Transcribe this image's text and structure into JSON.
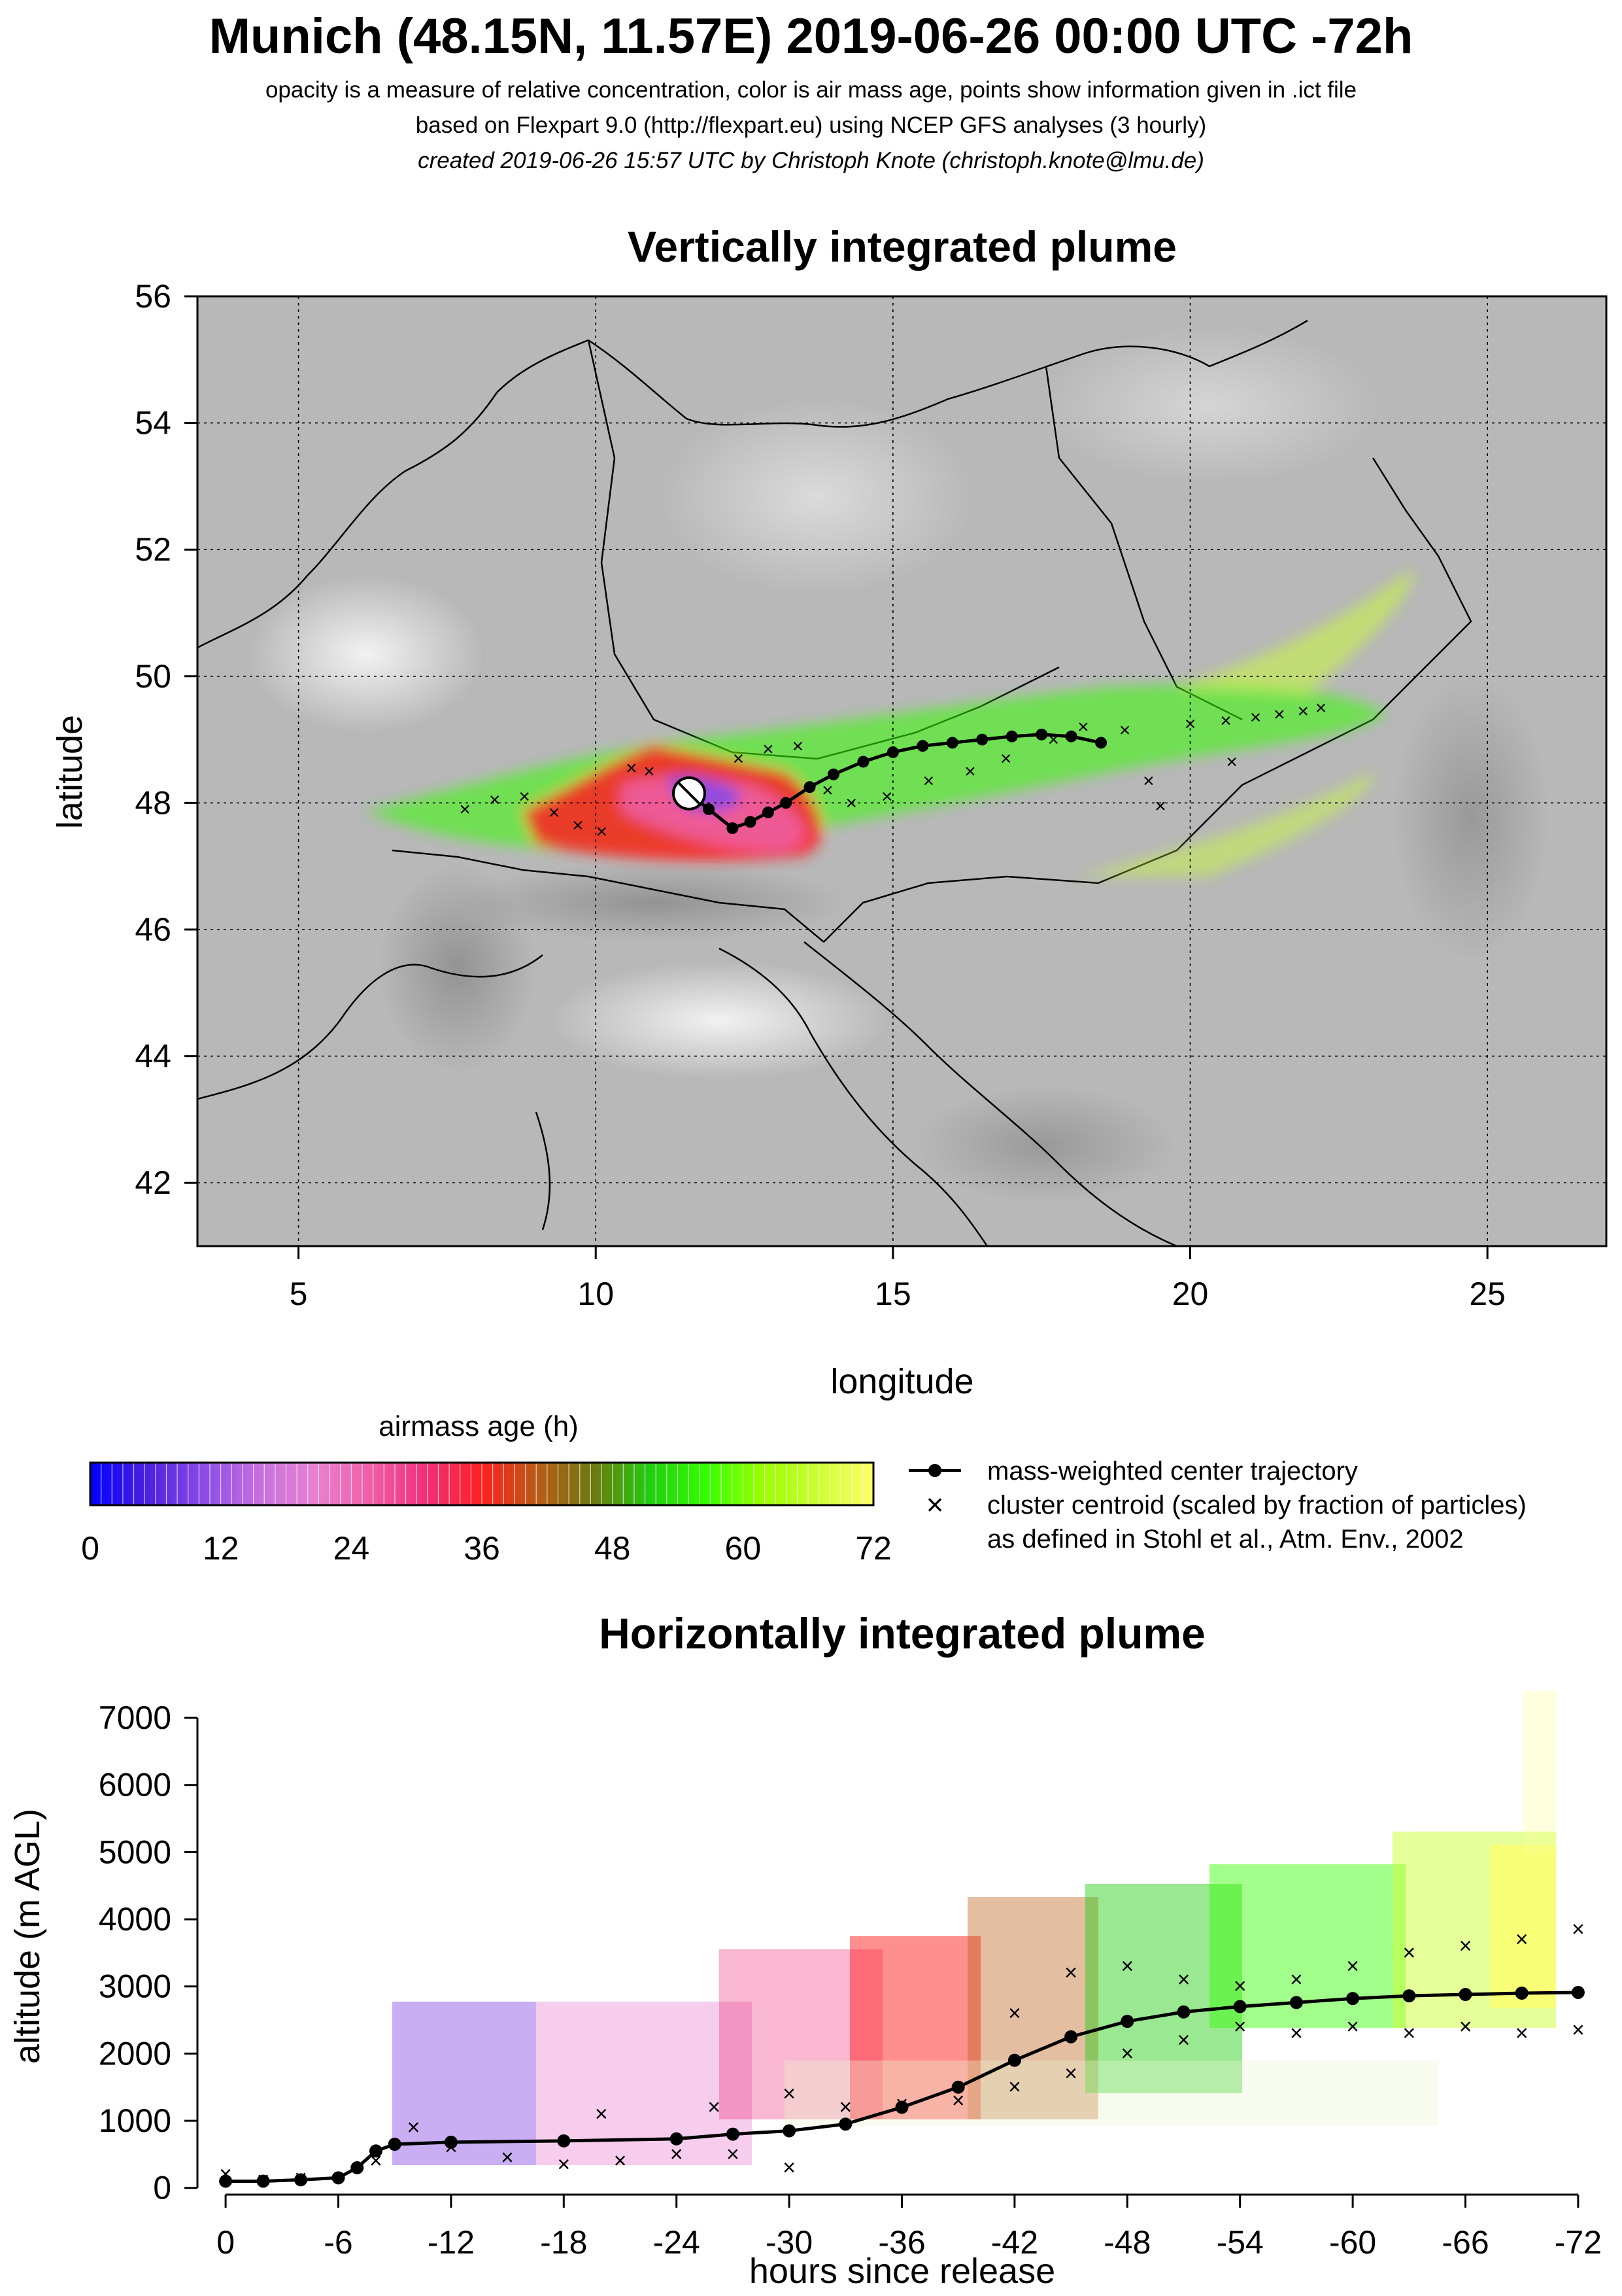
{
  "header": {
    "title": "Munich (48.15N, 11.57E) 2019-06-26 00:00 UTC -72h",
    "subtitle_1": "opacity is a measure of relative concentration, color is air mass age, points show information given in .ict file",
    "subtitle_2": "based on Flexpart 9.0 (http://flexpart.eu) using NCEP GFS analyses (3 hourly)",
    "subtitle_3": "created 2019-06-26 15:57 UTC by Christoph Knote (christoph.knote@lmu.de)"
  },
  "colors": {
    "background_grey": "#b8b8b8",
    "track": "#000000",
    "age_scale": [
      "#0000ff",
      "#4b1fe0",
      "#8a4be6",
      "#c46fe0",
      "#e882d0",
      "#ef5fa8",
      "#f0307a",
      "#ff2020",
      "#b85c14",
      "#6d7a10",
      "#22cc10",
      "#33ff00",
      "#99ff00",
      "#ccff33",
      "#ffff66"
    ]
  },
  "chart_data": [
    {
      "type": "scatter",
      "title": "Vertically integrated plume",
      "xlabel": "longitude",
      "ylabel": "latitude",
      "xlim": [
        3.3,
        27.0
      ],
      "ylim": [
        41.0,
        56.0
      ],
      "xticks": [
        5,
        10,
        15,
        20,
        25
      ],
      "yticks": [
        42,
        44,
        46,
        48,
        50,
        52,
        54,
        56
      ],
      "grid": true,
      "release_point": {
        "name": "Munich",
        "lon": 11.57,
        "lat": 48.15
      },
      "series": [
        {
          "name": "mass-weighted center trajectory",
          "marker": "line-dot",
          "points": [
            [
              11.57,
              48.15
            ],
            [
              11.9,
              47.9
            ],
            [
              12.3,
              47.6
            ],
            [
              12.6,
              47.7
            ],
            [
              12.9,
              47.85
            ],
            [
              13.2,
              48.0
            ],
            [
              13.6,
              48.25
            ],
            [
              14.0,
              48.45
            ],
            [
              14.5,
              48.65
            ],
            [
              15.0,
              48.8
            ],
            [
              15.5,
              48.9
            ],
            [
              16.0,
              48.95
            ],
            [
              16.5,
              49.0
            ],
            [
              17.0,
              49.05
            ],
            [
              17.5,
              49.08
            ],
            [
              18.0,
              49.05
            ],
            [
              18.5,
              48.95
            ]
          ]
        },
        {
          "name": "cluster centroid (scaled by fraction of particles)",
          "marker": "x",
          "points": [
            [
              7.8,
              47.9
            ],
            [
              8.3,
              48.05
            ],
            [
              8.8,
              48.1
            ],
            [
              9.3,
              47.85
            ],
            [
              9.7,
              47.65
            ],
            [
              10.1,
              47.55
            ],
            [
              10.6,
              48.55
            ],
            [
              10.9,
              48.5
            ],
            [
              12.4,
              48.7
            ],
            [
              12.9,
              48.85
            ],
            [
              13.4,
              48.9
            ],
            [
              13.9,
              48.2
            ],
            [
              14.3,
              48.0
            ],
            [
              14.9,
              48.1
            ],
            [
              15.6,
              48.35
            ],
            [
              16.3,
              48.5
            ],
            [
              16.9,
              48.7
            ],
            [
              17.7,
              49.0
            ],
            [
              18.2,
              49.2
            ],
            [
              18.9,
              49.15
            ],
            [
              19.5,
              47.95
            ],
            [
              19.3,
              48.35
            ],
            [
              20.0,
              49.25
            ],
            [
              20.6,
              49.3
            ],
            [
              21.1,
              49.35
            ],
            [
              21.5,
              49.4
            ],
            [
              21.9,
              49.45
            ],
            [
              22.2,
              49.5
            ],
            [
              20.7,
              48.65
            ]
          ]
        }
      ]
    },
    {
      "type": "scatter",
      "title": "Horizontally integrated plume",
      "xlabel": "hours since release",
      "ylabel": "altitude (m AGL)",
      "xlim": [
        1.5,
        -73.5
      ],
      "ylim": [
        -100,
        7400
      ],
      "xticks": [
        0,
        -6,
        -12,
        -18,
        -24,
        -30,
        -36,
        -42,
        -48,
        -54,
        -60,
        -66,
        -72
      ],
      "yticks": [
        0,
        1000,
        2000,
        3000,
        4000,
        5000,
        6000,
        7000
      ],
      "grid": false,
      "series": [
        {
          "name": "mass-weighted center trajectory",
          "marker": "line-dot",
          "points": [
            [
              0,
              100
            ],
            [
              -2,
              100
            ],
            [
              -4,
              120
            ],
            [
              -6,
              150
            ],
            [
              -7,
              300
            ],
            [
              -8,
              550
            ],
            [
              -9,
              650
            ],
            [
              -12,
              680
            ],
            [
              -18,
              700
            ],
            [
              -24,
              730
            ],
            [
              -27,
              800
            ],
            [
              -30,
              850
            ],
            [
              -33,
              950
            ],
            [
              -36,
              1200
            ],
            [
              -39,
              1500
            ],
            [
              -42,
              1900
            ],
            [
              -45,
              2250
            ],
            [
              -48,
              2480
            ],
            [
              -51,
              2620
            ],
            [
              -54,
              2700
            ],
            [
              -57,
              2760
            ],
            [
              -60,
              2820
            ],
            [
              -63,
              2860
            ],
            [
              -66,
              2880
            ],
            [
              -69,
              2900
            ],
            [
              -72,
              2910
            ]
          ]
        },
        {
          "name": "cluster centroid (scaled by fraction of particles)",
          "marker": "x",
          "points": [
            [
              0,
              200
            ],
            [
              -2,
              120
            ],
            [
              -4,
              150
            ],
            [
              -8,
              400
            ],
            [
              -10,
              900
            ],
            [
              -12,
              600
            ],
            [
              -15,
              450
            ],
            [
              -18,
              350
            ],
            [
              -21,
              400
            ],
            [
              -24,
              500
            ],
            [
              -27,
              500
            ],
            [
              -30,
              300
            ],
            [
              -33,
              1200
            ],
            [
              -36,
              1250
            ],
            [
              -39,
              1300
            ],
            [
              -42,
              1500
            ],
            [
              -45,
              1700
            ],
            [
              -48,
              2000
            ],
            [
              -51,
              2200
            ],
            [
              -54,
              2400
            ],
            [
              -57,
              2300
            ],
            [
              -60,
              2400
            ],
            [
              -63,
              2300
            ],
            [
              -66,
              2400
            ],
            [
              -69,
              2300
            ],
            [
              -72,
              2350
            ],
            [
              -42,
              2600
            ],
            [
              -45,
              3200
            ],
            [
              -48,
              3300
            ],
            [
              -51,
              3100
            ],
            [
              -54,
              3000
            ],
            [
              -57,
              3100
            ],
            [
              -60,
              3300
            ],
            [
              -63,
              3500
            ],
            [
              -66,
              3600
            ],
            [
              -69,
              3700
            ],
            [
              -72,
              3850
            ],
            [
              -20,
              1100
            ],
            [
              -26,
              1200
            ],
            [
              -30,
              1400
            ]
          ]
        }
      ]
    }
  ],
  "legend": {
    "colorbar_title": "airmass age (h)",
    "colorbar_ticks": [
      "0",
      "12",
      "24",
      "36",
      "48",
      "60",
      "72"
    ],
    "line_label": "mass-weighted center trajectory",
    "cross_label": "cluster centroid (scaled by fraction of particles)",
    "cross_note": "as defined in Stohl et al., Atm. Env., 2002"
  }
}
